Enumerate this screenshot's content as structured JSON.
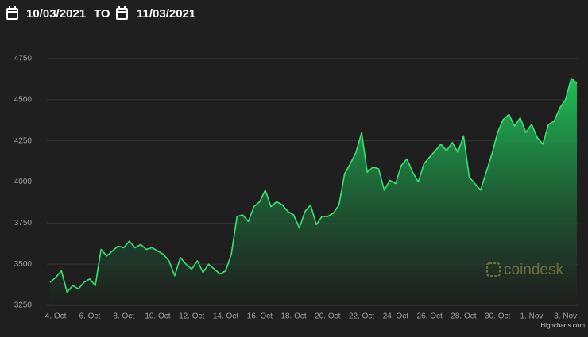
{
  "header": {
    "from": "10/03/2021",
    "separator": "TO",
    "to": "11/03/2021"
  },
  "chart_data": {
    "type": "area",
    "categories": [
      null,
      "4. Oct",
      null,
      null,
      null,
      null,
      null,
      "6. Oct",
      null,
      null,
      null,
      null,
      null,
      "8. Oct",
      null,
      null,
      null,
      null,
      null,
      "10. Oct",
      null,
      null,
      null,
      null,
      null,
      "12. Oct",
      null,
      null,
      null,
      null,
      null,
      "14. Oct",
      null,
      null,
      null,
      null,
      null,
      "16. Oct",
      null,
      null,
      null,
      null,
      null,
      "18. Oct",
      null,
      null,
      null,
      null,
      null,
      "20. Oct",
      null,
      null,
      null,
      null,
      null,
      "22. Oct",
      null,
      null,
      null,
      null,
      null,
      "24. Oct",
      null,
      null,
      null,
      null,
      null,
      "26. Oct",
      null,
      null,
      null,
      null,
      null,
      "28. Oct",
      null,
      null,
      null,
      null,
      null,
      "30. Oct",
      null,
      null,
      null,
      null,
      null,
      "1. Nov",
      null,
      null,
      null,
      null,
      null,
      "3. Nov",
      null,
      null
    ],
    "values": [
      3390,
      3420,
      3460,
      3330,
      3370,
      3350,
      3390,
      3410,
      3370,
      3590,
      3550,
      3580,
      3610,
      3600,
      3640,
      3600,
      3620,
      3590,
      3600,
      3580,
      3560,
      3520,
      3430,
      3540,
      3500,
      3470,
      3520,
      3450,
      3500,
      3470,
      3440,
      3460,
      3560,
      3790,
      3800,
      3760,
      3850,
      3880,
      3950,
      3850,
      3880,
      3860,
      3820,
      3800,
      3720,
      3820,
      3860,
      3740,
      3790,
      3790,
      3810,
      3860,
      4050,
      4110,
      4180,
      4300,
      4060,
      4090,
      4080,
      3950,
      4010,
      3990,
      4100,
      4140,
      4060,
      4000,
      4110,
      4150,
      4190,
      4230,
      4190,
      4240,
      4180,
      4280,
      4030,
      3990,
      3950,
      4060,
      4170,
      4300,
      4380,
      4410,
      4340,
      4390,
      4300,
      4350,
      4270,
      4230,
      4350,
      4370,
      4450,
      4500,
      4630,
      4600
    ],
    "color": "#33e66f",
    "ylim": [
      3250,
      4750
    ],
    "yticks": [
      3250,
      3500,
      3750,
      4000,
      4250,
      4500,
      4750
    ],
    "grid": true
  },
  "watermark": "coindesk",
  "credits": "Highcharts.com"
}
